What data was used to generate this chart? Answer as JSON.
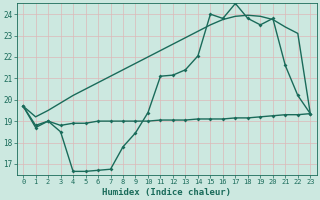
{
  "title": "",
  "xlabel": "Humidex (Indice chaleur)",
  "bg_color": "#cce8e0",
  "grid_color": "#b0d8cc",
  "line_color": "#1a6b5a",
  "xlim": [
    -0.5,
    23.5
  ],
  "ylim": [
    16.5,
    24.5
  ],
  "yticks": [
    17,
    18,
    19,
    20,
    21,
    22,
    23,
    24
  ],
  "xticks": [
    0,
    1,
    2,
    3,
    4,
    5,
    6,
    7,
    8,
    9,
    10,
    11,
    12,
    13,
    14,
    15,
    16,
    17,
    18,
    19,
    20,
    21,
    22,
    23
  ],
  "line1_x": [
    0,
    1,
    2,
    3,
    4,
    5,
    6,
    7,
    8,
    9,
    10,
    11,
    12,
    13,
    14,
    15,
    16,
    17,
    18,
    19,
    20,
    21,
    22,
    23
  ],
  "line1_y": [
    19.7,
    18.7,
    19.0,
    18.5,
    16.65,
    16.65,
    16.7,
    16.75,
    17.8,
    18.45,
    19.4,
    21.1,
    21.15,
    21.4,
    22.05,
    24.0,
    23.8,
    24.5,
    23.8,
    23.5,
    23.8,
    21.6,
    20.2,
    19.35
  ],
  "line2_x": [
    0,
    1,
    2,
    3,
    4,
    5,
    6,
    7,
    8,
    9,
    10,
    11,
    12,
    13,
    14,
    15,
    16,
    17,
    18,
    19,
    20,
    21,
    22,
    23
  ],
  "line2_y": [
    19.7,
    18.8,
    19.0,
    18.8,
    18.9,
    18.9,
    19.0,
    19.0,
    19.0,
    19.0,
    19.0,
    19.05,
    19.05,
    19.05,
    19.1,
    19.1,
    19.1,
    19.15,
    19.15,
    19.2,
    19.25,
    19.3,
    19.3,
    19.35
  ],
  "line3_x": [
    0,
    1,
    2,
    3,
    4,
    5,
    6,
    7,
    8,
    9,
    10,
    11,
    12,
    13,
    14,
    15,
    16,
    17,
    18,
    19,
    20,
    21,
    22,
    23
  ],
  "line3_y": [
    19.7,
    19.2,
    19.5,
    19.85,
    20.2,
    20.5,
    20.8,
    21.1,
    21.4,
    21.7,
    22.0,
    22.3,
    22.6,
    22.9,
    23.2,
    23.5,
    23.75,
    23.9,
    23.95,
    23.9,
    23.75,
    23.4,
    23.1,
    19.35
  ]
}
